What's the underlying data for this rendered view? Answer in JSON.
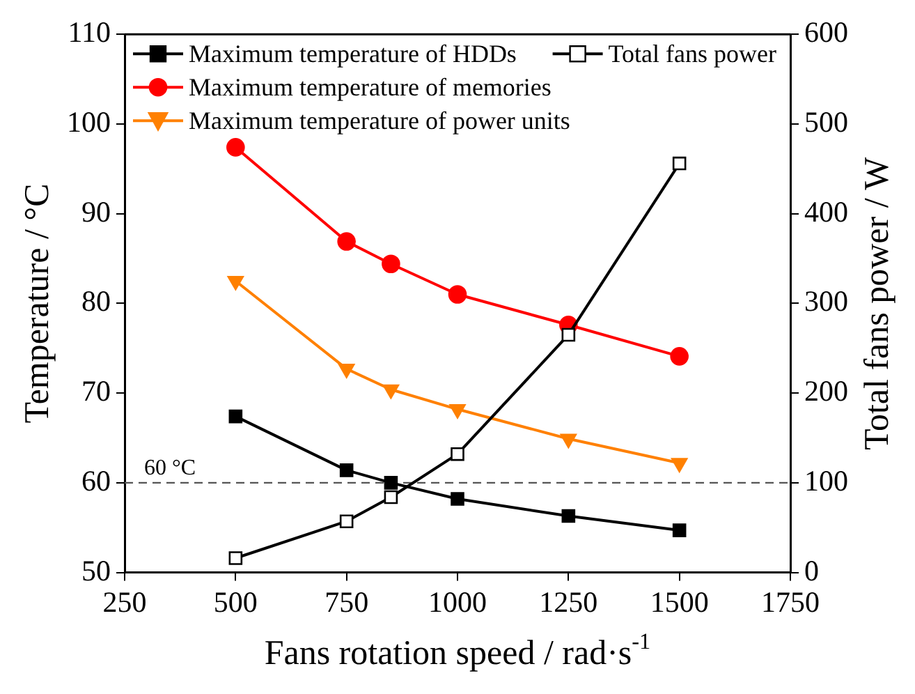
{
  "chart_data": {
    "type": "line",
    "xlabel": "Fans rotation speed / rad·s$^{-1}$",
    "ylabel": "Temperature / °C",
    "y2label": "Total fans power / W",
    "x": [
      500,
      750,
      850,
      1000,
      1250,
      1500
    ],
    "xlim": [
      250,
      1750
    ],
    "xticks": [
      250,
      500,
      750,
      1000,
      1250,
      1500,
      1750
    ],
    "ylim": [
      50,
      110
    ],
    "yticks": [
      50,
      60,
      70,
      80,
      90,
      100,
      110
    ],
    "y2lim": [
      0,
      600
    ],
    "y2ticks": [
      0,
      100,
      200,
      300,
      400,
      500,
      600
    ],
    "line_style": "solid",
    "grid": false,
    "legend": "top left",
    "series": [
      {
        "name": "Maximum temperature of HDDs",
        "color": "#000000",
        "marker": "square",
        "values": [
          67.4,
          61.4,
          60.0,
          58.2,
          56.3,
          54.7
        ]
      },
      {
        "name": "Total fans power",
        "color": "#000000",
        "marker": "square-open",
        "axis": "y2",
        "values": [
          16,
          57,
          84,
          132,
          265,
          456
        ]
      },
      {
        "name": "Maximum temperature of memories",
        "color": "#ff0000",
        "marker": "circle",
        "values": [
          97.4,
          86.9,
          84.4,
          81.0,
          77.6,
          74.1
        ]
      },
      {
        "name": "Maximum temperature of power units",
        "color": "#ff8000",
        "marker": "triangle-down",
        "values": [
          82.5,
          72.7,
          70.4,
          68.2,
          64.9,
          62.2
        ]
      }
    ],
    "ref_lines": [
      {
        "axis": "y",
        "value": 60,
        "label": "60 °C",
        "color": "#555555",
        "line_style": "dashed"
      }
    ]
  }
}
